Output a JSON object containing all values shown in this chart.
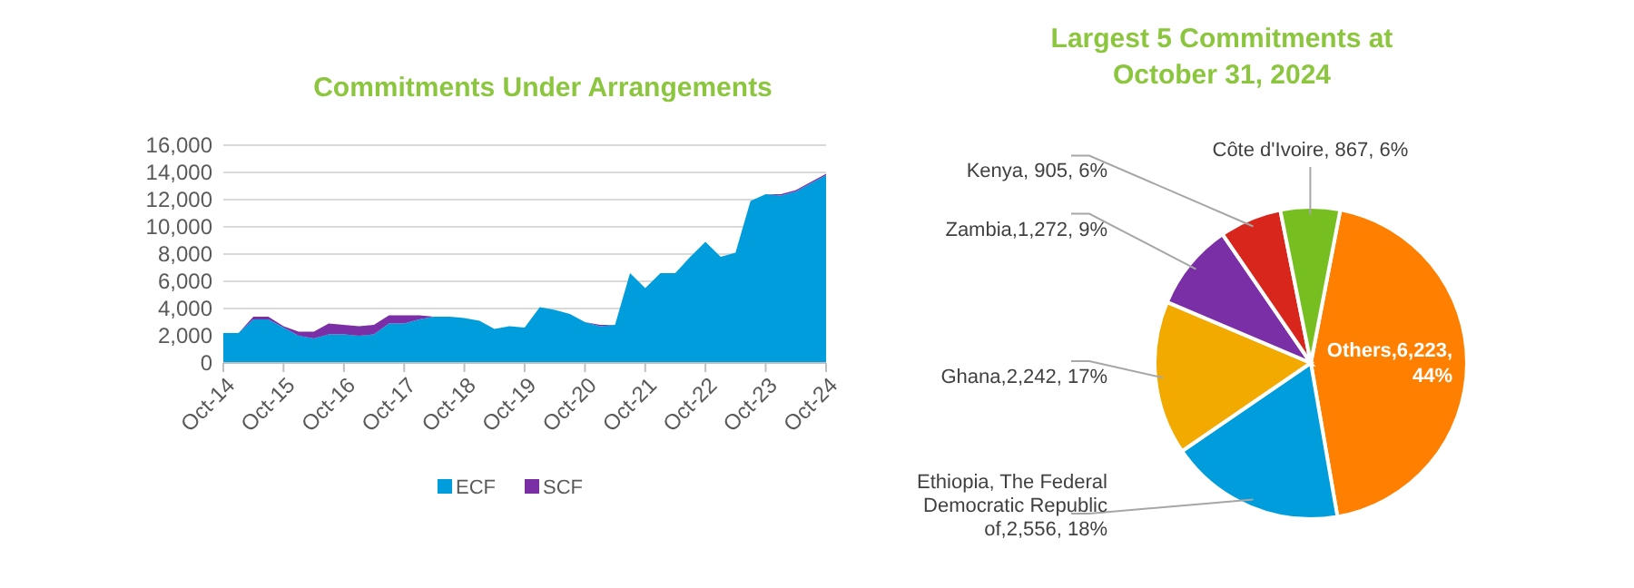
{
  "chart_data": [
    {
      "type": "area",
      "stacked": true,
      "title": "Commitments Under Arrangements",
      "x": [
        "2014-10",
        "2015-01",
        "2015-04",
        "2015-07",
        "2015-10",
        "2016-01",
        "2016-04",
        "2016-07",
        "2016-10",
        "2017-01",
        "2017-04",
        "2017-07",
        "2017-10",
        "2018-01",
        "2018-04",
        "2018-07",
        "2018-10",
        "2019-01",
        "2019-04",
        "2019-07",
        "2019-10",
        "2020-01",
        "2020-04",
        "2020-07",
        "2020-10",
        "2021-01",
        "2021-04",
        "2021-07",
        "2021-10",
        "2022-01",
        "2022-04",
        "2022-07",
        "2022-10",
        "2023-01",
        "2023-04",
        "2023-07",
        "2023-10",
        "2024-01",
        "2024-04",
        "2024-07",
        "2024-10"
      ],
      "series": [
        {
          "name": "ECF",
          "color": "#009ddc",
          "values": [
            2200,
            2200,
            3200,
            3200,
            2600,
            2000,
            1800,
            2100,
            2100,
            2000,
            2100,
            2900,
            2900,
            3200,
            3400,
            3400,
            3300,
            3100,
            2500,
            2700,
            2600,
            4100,
            3900,
            3600,
            3000,
            2700,
            2800,
            6600,
            5500,
            6600,
            6600,
            7800,
            8900,
            7800,
            8100,
            11900,
            12400,
            12300,
            12600,
            13200,
            13800
          ]
        },
        {
          "name": "SCF",
          "color": "#7b2fa6",
          "values": [
            0,
            0,
            200,
            200,
            100,
            300,
            500,
            800,
            700,
            700,
            700,
            600,
            600,
            300,
            0,
            0,
            0,
            0,
            0,
            0,
            0,
            0,
            0,
            0,
            0,
            100,
            0,
            0,
            0,
            0,
            0,
            0,
            0,
            0,
            0,
            0,
            0,
            100,
            100,
            100,
            100
          ]
        }
      ],
      "xlim": [
        "2014-10",
        "2024-10"
      ],
      "xticks": [
        {
          "value": "2014-10",
          "label": "Oct-14"
        },
        {
          "value": "2015-10",
          "label": "Oct-15"
        },
        {
          "value": "2016-10",
          "label": "Oct-16"
        },
        {
          "value": "2017-10",
          "label": "Oct-17"
        },
        {
          "value": "2018-10",
          "label": "Oct-18"
        },
        {
          "value": "2019-10",
          "label": "Oct-19"
        },
        {
          "value": "2020-10",
          "label": "Oct-20"
        },
        {
          "value": "2021-10",
          "label": "Oct-21"
        },
        {
          "value": "2022-10",
          "label": "Oct-22"
        },
        {
          "value": "2023-10",
          "label": "Oct-23"
        },
        {
          "value": "2024-10",
          "label": "Oct-24"
        }
      ],
      "ylim": [
        0,
        16000
      ],
      "yticks": [
        0,
        {
          "value": 2000,
          "label": "2,000"
        },
        {
          "value": 4000,
          "label": "4,000"
        },
        {
          "value": 6000,
          "label": "6,000"
        },
        {
          "value": 8000,
          "label": "8,000"
        },
        {
          "value": 10000,
          "label": "10,000"
        },
        {
          "value": 12000,
          "label": "12,000"
        },
        {
          "value": 14000,
          "label": "14,000"
        },
        {
          "value": 16000,
          "label": "16,000"
        }
      ],
      "grid": "y",
      "legend": "bottom"
    },
    {
      "type": "pie",
      "title": "Largest 5 Commitments at October 31, 2024",
      "categories": [
        "Others",
        "Ethiopia, The Federal Democratic Republic of",
        "Ghana",
        "Zambia",
        "Kenya",
        "Côte d'Ivoire"
      ],
      "values": [
        6223,
        2556,
        2242,
        1272,
        905,
        867
      ],
      "colors": [
        "#ff8000",
        "#009ddc",
        "#f2a900",
        "#7b2fa6",
        "#d9261c",
        "#77bf20"
      ],
      "value_labels": [
        ",6,223, 44%",
        ",2,556, 18%",
        ",2,242, 17%",
        ",1,272, 9%",
        ", 905, 6%",
        ", 867, 6%"
      ]
    }
  ]
}
